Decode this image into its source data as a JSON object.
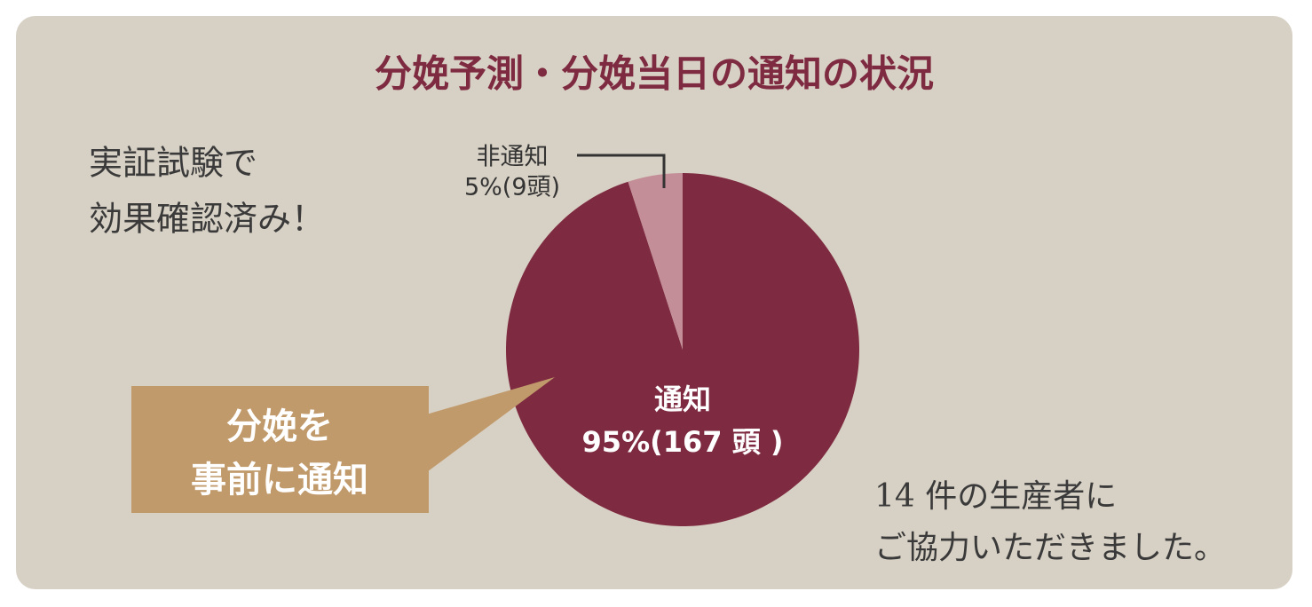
{
  "chart_data": {
    "type": "pie",
    "title": "分娩予測・分娩当日の通知の状況",
    "categories": [
      "通知",
      "非通知"
    ],
    "values": [
      95,
      5
    ],
    "value_labels": [
      "95%(167 頭 )",
      "5%(9頭)"
    ],
    "colors": [
      "#7e2a40",
      "#c48e98"
    ],
    "side_note": [
      "実証試験で",
      "効果確認済み！"
    ],
    "callout": [
      "分娩を",
      "事前に通知"
    ],
    "footnote": [
      "14 件の生産者に",
      "ご協力いただきました。"
    ]
  }
}
